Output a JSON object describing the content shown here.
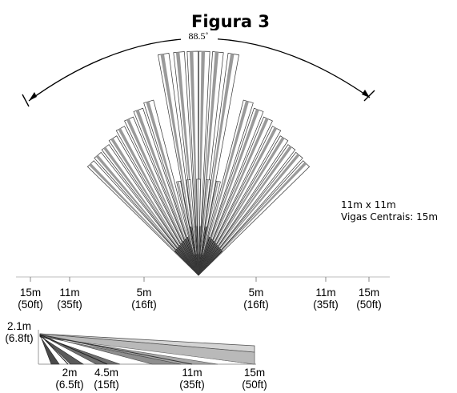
{
  "figure_title": "Figura 3",
  "coverage_angle": "88.5˚",
  "coverage_note": {
    "line1": "11m x 11m",
    "line2": "Vigas Centrais: 15m"
  },
  "top_scale": [
    {
      "m": "15m",
      "ft": "(50ft)"
    },
    {
      "m": "11m",
      "ft": "(35ft)"
    },
    {
      "m": "5m",
      "ft": "(16ft)"
    },
    {
      "m": "5m",
      "ft": "(16ft)"
    },
    {
      "m": "11m",
      "ft": "(35ft)"
    },
    {
      "m": "15m",
      "ft": "(50ft)"
    }
  ],
  "side_height": {
    "m": "2.1m",
    "ft": "(6.8ft)"
  },
  "side_scale": [
    {
      "m": "2m",
      "ft": "(6.5ft)"
    },
    {
      "m": "4.5m",
      "ft": "(15ft)"
    },
    {
      "m": "11m",
      "ft": "(35ft)"
    },
    {
      "m": "15m",
      "ft": "(50ft)"
    }
  ],
  "colors": {
    "beam_stripe": "#9a9a9a",
    "beam_outline": "#333333",
    "side_near": "#6f6f6f",
    "side_mid": "#a8a8a8",
    "side_far": "#d4d4d4"
  }
}
